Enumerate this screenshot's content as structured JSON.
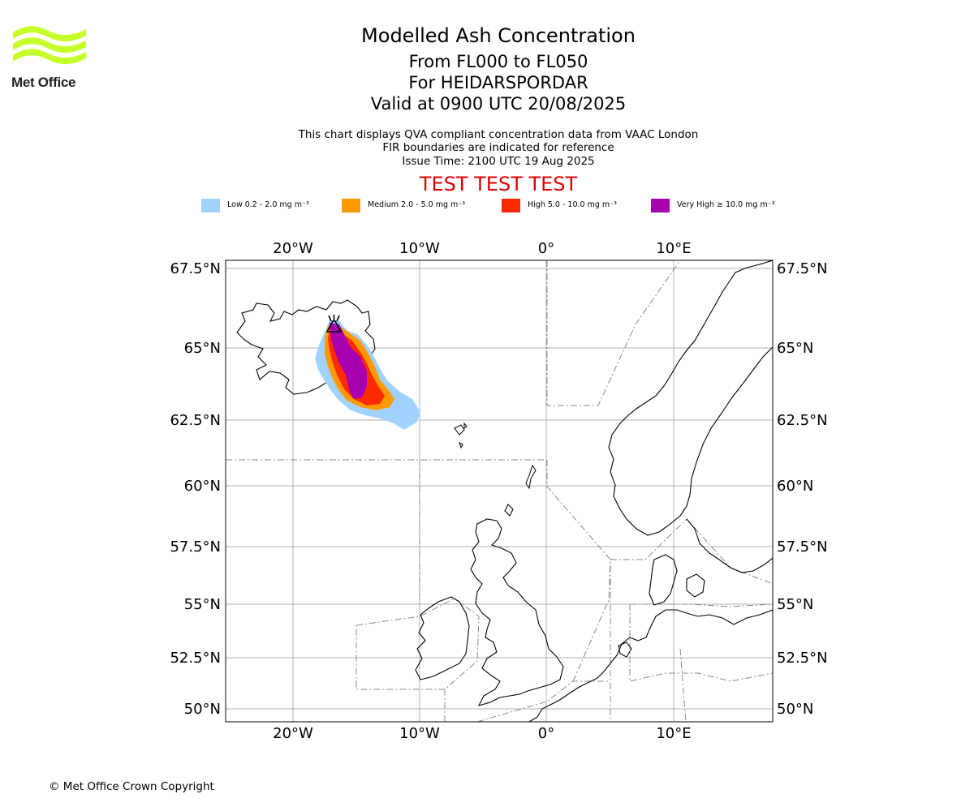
{
  "brand": {
    "name": "Met Office",
    "logo_color": "#c5ff2a"
  },
  "header": {
    "title": "Modelled Ash Concentration",
    "levels": "From FL000 to FL050",
    "volcano_line": "For HEIDARSPORDAR",
    "valid_time": "Valid at 0900 UTC 20/08/2025",
    "description": "This chart displays QVA compliant concentration data from VAAC London",
    "fir_note": "FIR boundaries are indicated for reference",
    "issue_time": "Issue Time: 2100 UTC 19 Aug 2025",
    "test_banner": "TEST TEST TEST",
    "test_color": "#e00000"
  },
  "legend": [
    {
      "label": "Low 0.2 - 2.0 mg m⁻³",
      "color": "#a0d2fe"
    },
    {
      "label": "Medium 2.0 - 5.0 mg m⁻³",
      "color": "#fe9900"
    },
    {
      "label": "High 5.0 - 10.0 mg m⁻³",
      "color": "#fe2a00"
    },
    {
      "label": "Very High ≥ 10.0 mg m⁻³",
      "color": "#a600b0"
    }
  ],
  "map": {
    "lon_ticks": [
      "20°W",
      "10°W",
      "0°",
      "10°E"
    ],
    "lat_ticks": [
      "67.5°N",
      "65°N",
      "62.5°N",
      "60°N",
      "57.5°N",
      "55°N",
      "52.5°N",
      "50°N"
    ],
    "volcano_name": "HEIDARSPORDAR"
  },
  "footer": {
    "copyright": "© Met Office Crown Copyright"
  }
}
